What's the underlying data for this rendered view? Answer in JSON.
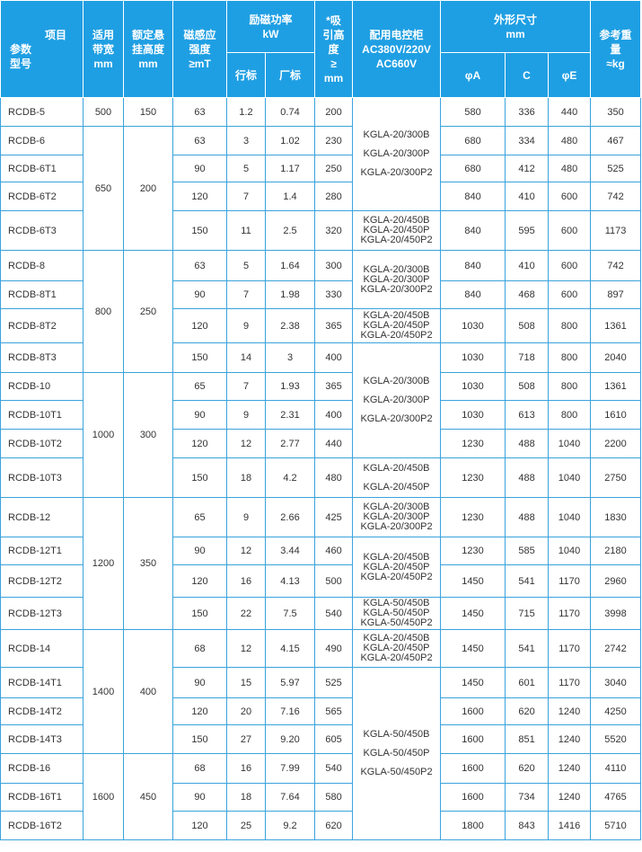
{
  "table": {
    "header": {
      "model": [
        "项目",
        "参数",
        "型号"
      ],
      "belt_width": [
        "适用",
        "带宽",
        "mm"
      ],
      "suspension_height": [
        "额定悬",
        "挂高度",
        "mm"
      ],
      "field_strength": [
        "磁感应",
        "强度",
        "≥mT"
      ],
      "power": {
        "title": [
          "励磁功率",
          "kW"
        ],
        "sub": [
          "行标",
          "厂标"
        ]
      },
      "lift_height": [
        "*吸",
        "引高",
        "度",
        "≥",
        "mm"
      ],
      "cabinet": [
        "配用电控柜",
        "AC380V/220V",
        "AC660V"
      ],
      "dimensions": {
        "title": [
          "外形尺寸",
          "mm"
        ],
        "sub": [
          "φA",
          "C",
          "φE"
        ]
      },
      "weight": [
        "参考重",
        "量",
        "≈kg"
      ]
    },
    "groups": [
      [
        "500",
        "150"
      ],
      [
        "650",
        "200"
      ],
      [
        "800",
        "250"
      ],
      [
        "1000",
        "300"
      ],
      [
        "1200",
        "350"
      ],
      [
        "1400",
        "400"
      ],
      [
        "1600",
        "450"
      ]
    ],
    "cabinets": [
      [
        "KGLA-20/300B",
        "KGLA-20/300P",
        "KGLA-20/300P2"
      ],
      [
        "KGLA-20/450B",
        "KGLA-20/450P",
        "KGLA-20/450P2"
      ],
      [
        "KGLA-20/300B",
        "KGLA-20/300P",
        "KGLA-20/300P2"
      ],
      [
        "KGLA-20/450B",
        "KGLA-20/450P",
        "KGLA-20/450P2"
      ],
      [
        "KGLA-20/300B",
        "KGLA-20/300P",
        "KGLA-20/300P2"
      ],
      [
        "KGLA-20/450B",
        "KGLA-20/450P"
      ],
      [
        "KGLA-20/300B",
        "KGLA-20/300P",
        "KGLA-20/300P2"
      ],
      [
        "KGLA-20/450B",
        "KGLA-20/450P",
        "KGLA-20/450P2"
      ],
      [
        "KGLA-50/450B",
        "KGLA-50/450P",
        "KGLA-50/450P2"
      ],
      [
        "KGLA-20/450B",
        "KGLA-20/450P",
        "KGLA-20/450P2"
      ],
      [
        "KGLA-50/450B",
        "KGLA-50/450P",
        "KGLA-50/450P2"
      ]
    ],
    "rows": [
      [
        "RCDB-5",
        "63",
        "1.2",
        "0.74",
        "200",
        "580",
        "336",
        "440",
        "350"
      ],
      [
        "RCDB-6",
        "63",
        "3",
        "1.02",
        "230",
        "680",
        "334",
        "480",
        "467"
      ],
      [
        "RCDB-6T1",
        "90",
        "5",
        "1.17",
        "250",
        "680",
        "412",
        "480",
        "525"
      ],
      [
        "RCDB-6T2",
        "120",
        "7",
        "1.4",
        "280",
        "840",
        "410",
        "600",
        "742"
      ],
      [
        "RCDB-6T3",
        "150",
        "11",
        "2.5",
        "320",
        "840",
        "595",
        "600",
        "1173"
      ],
      [
        "RCDB-8",
        "63",
        "5",
        "1.64",
        "300",
        "840",
        "410",
        "600",
        "742"
      ],
      [
        "RCDB-8T1",
        "90",
        "7",
        "1.98",
        "330",
        "840",
        "468",
        "600",
        "897"
      ],
      [
        "RCDB-8T2",
        "120",
        "9",
        "2.38",
        "365",
        "1030",
        "508",
        "800",
        "1361"
      ],
      [
        "RCDB-8T3",
        "150",
        "14",
        "3",
        "400",
        "1030",
        "718",
        "800",
        "2040"
      ],
      [
        "RCDB-10",
        "65",
        "7",
        "1.93",
        "365",
        "1030",
        "508",
        "800",
        "1361"
      ],
      [
        "RCDB-10T1",
        "90",
        "9",
        "2.31",
        "400",
        "1030",
        "613",
        "800",
        "1610"
      ],
      [
        "RCDB-10T2",
        "120",
        "12",
        "2.77",
        "440",
        "1230",
        "488",
        "1040",
        "2200"
      ],
      [
        "RCDB-10T3",
        "150",
        "18",
        "4.2",
        "480",
        "1230",
        "488",
        "1040",
        "2750"
      ],
      [
        "RCDB-12",
        "65",
        "9",
        "2.66",
        "425",
        "1230",
        "488",
        "1040",
        "1830"
      ],
      [
        "RCDB-12T1",
        "90",
        "12",
        "3.44",
        "460",
        "1230",
        "585",
        "1040",
        "2180"
      ],
      [
        "RCDB-12T2",
        "120",
        "16",
        "4.13",
        "500",
        "1450",
        "541",
        "1170",
        "2960"
      ],
      [
        "RCDB-12T3",
        "150",
        "22",
        "7.5",
        "540",
        "1450",
        "715",
        "1170",
        "3998"
      ],
      [
        "RCDB-14",
        "68",
        "12",
        "4.15",
        "490",
        "1450",
        "541",
        "1170",
        "2742"
      ],
      [
        "RCDB-14T1",
        "90",
        "15",
        "5.97",
        "525",
        "1450",
        "601",
        "1170",
        "3040"
      ],
      [
        "RCDB-14T2",
        "120",
        "20",
        "7.16",
        "565",
        "1600",
        "620",
        "1240",
        "4250"
      ],
      [
        "RCDB-14T3",
        "150",
        "27",
        "9.20",
        "605",
        "1600",
        "851",
        "1240",
        "5520"
      ],
      [
        "RCDB-16",
        "68",
        "16",
        "7.99",
        "540",
        "1600",
        "620",
        "1240",
        "4110"
      ],
      [
        "RCDB-16T1",
        "90",
        "18",
        "7.64",
        "580",
        "1600",
        "734",
        "1240",
        "4765"
      ],
      [
        "RCDB-16T2",
        "120",
        "25",
        "9.2",
        "620",
        "1800",
        "843",
        "1416",
        "5710"
      ]
    ]
  }
}
